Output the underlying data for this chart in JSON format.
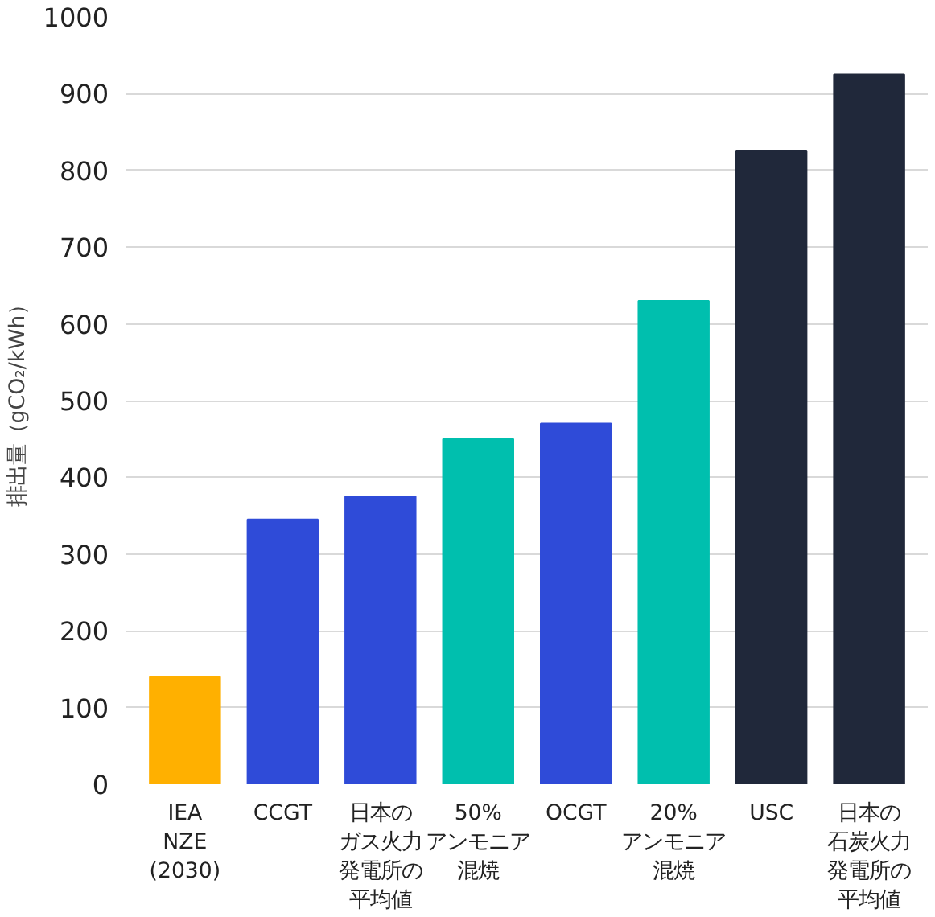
{
  "chart_data": {
    "type": "bar",
    "ylabel": "排出量（gCO₂/kWh）",
    "categories": [
      "IEA NZE (2030)",
      "CCGT",
      "日本のガス火力発電所の平均値",
      "50%アンモニア混焼",
      "OCGT",
      "20%アンモニア混焼",
      "USC",
      "日本の石炭火力発電所の平均値"
    ],
    "values": [
      140,
      345,
      375,
      450,
      470,
      630,
      825,
      925
    ],
    "colors": [
      "#ffb000",
      "#2f4bd8",
      "#2f4bd8",
      "#00bfae",
      "#2f4bd8",
      "#00bfae",
      "#20283a",
      "#20283a"
    ],
    "ylim": [
      0,
      1000
    ],
    "yticks": [
      0,
      100,
      200,
      300,
      400,
      500,
      600,
      700,
      800,
      900,
      1000
    ],
    "grid": "y"
  }
}
